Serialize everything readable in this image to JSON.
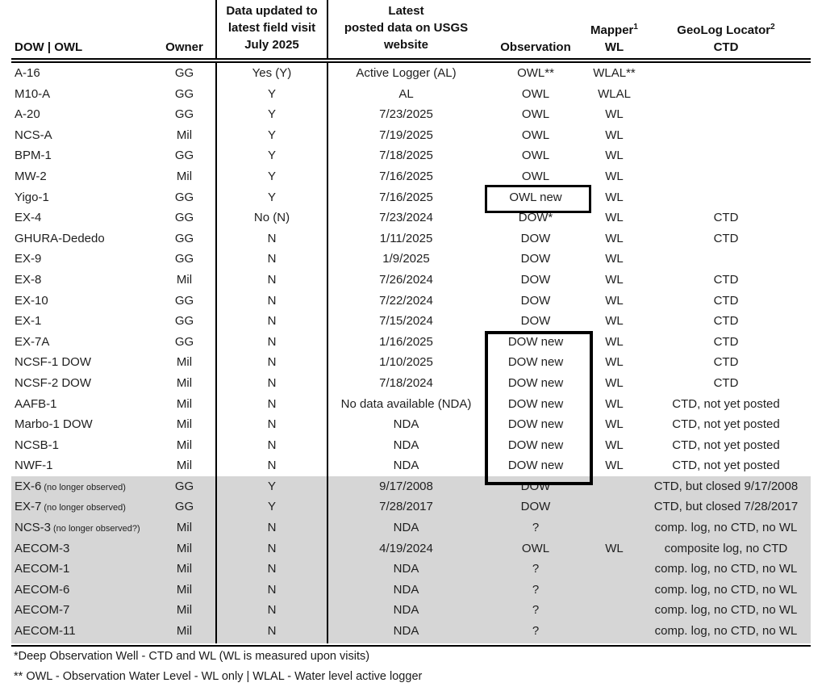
{
  "table": {
    "columns": [
      {
        "label": "DOW | OWL"
      },
      {
        "label": "Owner"
      },
      {
        "line1": "Data updated to",
        "line2": "latest field visit",
        "line3": "July 2025"
      },
      {
        "line1": "Latest",
        "line2": "posted data on USGS",
        "line3": "website"
      },
      {
        "label": "Observation"
      },
      {
        "label": "Mapper",
        "sup": "1",
        "sub_label": "WL"
      },
      {
        "label": "GeoLog Locator",
        "sup": "2",
        "sub_label": "CTD"
      }
    ],
    "rows": [
      {
        "name": "A-16",
        "note": "",
        "owner": "GG",
        "updated": "Yes (Y)",
        "posted": "Active Logger (AL)",
        "obs": "OWL**",
        "wl": "WLAL**",
        "ctd": ""
      },
      {
        "name": "M10-A",
        "note": "",
        "owner": "GG",
        "updated": "Y",
        "posted": "AL",
        "obs": "OWL",
        "wl": "WLAL",
        "ctd": ""
      },
      {
        "name": "A-20",
        "note": "",
        "owner": "GG",
        "updated": "Y",
        "posted": "7/23/2025",
        "obs": "OWL",
        "wl": "WL",
        "ctd": ""
      },
      {
        "name": "NCS-A",
        "note": "",
        "owner": "Mil",
        "updated": "Y",
        "posted": "7/19/2025",
        "obs": "OWL",
        "wl": "WL",
        "ctd": ""
      },
      {
        "name": "BPM-1",
        "note": "",
        "owner": "GG",
        "updated": "Y",
        "posted": "7/18/2025",
        "obs": "OWL",
        "wl": "WL",
        "ctd": ""
      },
      {
        "name": "MW-2",
        "note": "",
        "owner": "Mil",
        "updated": "Y",
        "posted": "7/16/2025",
        "obs": "OWL",
        "wl": "WL",
        "ctd": ""
      },
      {
        "name": "Yigo-1",
        "note": "",
        "owner": "GG",
        "updated": "Y",
        "posted": "7/16/2025",
        "obs": "OWL new",
        "wl": "WL",
        "ctd": ""
      },
      {
        "name": "EX-4",
        "note": "",
        "owner": "GG",
        "updated": "No (N)",
        "posted": "7/23/2024",
        "obs": "DOW*",
        "wl": "WL",
        "ctd": "CTD"
      },
      {
        "name": "GHURA-Dededo",
        "note": "",
        "owner": "GG",
        "updated": "N",
        "posted": "1/11/2025",
        "obs": "DOW",
        "wl": "WL",
        "ctd": "CTD"
      },
      {
        "name": "EX-9",
        "note": "",
        "owner": "GG",
        "updated": "N",
        "posted": "1/9/2025",
        "obs": "DOW",
        "wl": "WL",
        "ctd": ""
      },
      {
        "name": "EX-8",
        "note": "",
        "owner": "Mil",
        "updated": "N",
        "posted": "7/26/2024",
        "obs": "DOW",
        "wl": "WL",
        "ctd": "CTD"
      },
      {
        "name": "EX-10",
        "note": "",
        "owner": "GG",
        "updated": "N",
        "posted": "7/22/2024",
        "obs": "DOW",
        "wl": "WL",
        "ctd": "CTD"
      },
      {
        "name": "EX-1",
        "note": "",
        "owner": "GG",
        "updated": "N",
        "posted": "7/15/2024",
        "obs": "DOW",
        "wl": "WL",
        "ctd": "CTD"
      },
      {
        "name": "EX-7A",
        "note": "",
        "owner": "GG",
        "updated": "N",
        "posted": "1/16/2025",
        "obs": "DOW new",
        "wl": "WL",
        "ctd": "CTD"
      },
      {
        "name": "NCSF-1 DOW",
        "note": "",
        "owner": "Mil",
        "updated": "N",
        "posted": "1/10/2025",
        "obs": "DOW new",
        "wl": "WL",
        "ctd": "CTD"
      },
      {
        "name": "NCSF-2 DOW",
        "note": "",
        "owner": "Mil",
        "updated": "N",
        "posted": "7/18/2024",
        "obs": "DOW new",
        "wl": "WL",
        "ctd": "CTD"
      },
      {
        "name": "AAFB-1",
        "note": "",
        "owner": "Mil",
        "updated": "N",
        "posted": "No data available (NDA)",
        "obs": "DOW new",
        "wl": "WL",
        "ctd": "CTD, not yet posted"
      },
      {
        "name": "Marbo-1 DOW",
        "note": "",
        "owner": "Mil",
        "updated": "N",
        "posted": "NDA",
        "obs": "DOW new",
        "wl": "WL",
        "ctd": "CTD, not yet posted"
      },
      {
        "name": "NCSB-1",
        "note": "",
        "owner": "Mil",
        "updated": "N",
        "posted": "NDA",
        "obs": "DOW new",
        "wl": "WL",
        "ctd": "CTD, not yet posted"
      },
      {
        "name": "NWF-1",
        "note": "",
        "owner": "Mil",
        "updated": "N",
        "posted": "NDA",
        "obs": "DOW new",
        "wl": "WL",
        "ctd": "CTD, not yet posted"
      },
      {
        "name": "EX-6",
        "note": "(no longer observed)",
        "owner": "GG",
        "updated": "Y",
        "posted": "9/17/2008",
        "obs": "DOW",
        "wl": "",
        "ctd": "CTD, but closed 9/17/2008",
        "inactive": true
      },
      {
        "name": "EX-7",
        "note": "(no longer observed)",
        "owner": "GG",
        "updated": "Y",
        "posted": "7/28/2017",
        "obs": "DOW",
        "wl": "",
        "ctd": "CTD, but closed 7/28/2017",
        "inactive": true
      },
      {
        "name": "NCS-3",
        "note": "(no longer observed?)",
        "owner": "Mil",
        "updated": "N",
        "posted": "NDA",
        "obs": "?",
        "wl": "",
        "ctd": "comp. log, no CTD, no WL",
        "inactive": true
      },
      {
        "name": "AECOM-3",
        "note": "",
        "owner": "Mil",
        "updated": "N",
        "posted": "4/19/2024",
        "obs": "OWL",
        "wl": "WL",
        "ctd": "composite log, no CTD",
        "inactive": true
      },
      {
        "name": "AECOM-1",
        "note": "",
        "owner": "Mil",
        "updated": "N",
        "posted": "NDA",
        "obs": "?",
        "wl": "",
        "ctd": "comp. log, no CTD, no WL",
        "inactive": true
      },
      {
        "name": "AECOM-6",
        "note": "",
        "owner": "Mil",
        "updated": "N",
        "posted": "NDA",
        "obs": "?",
        "wl": "",
        "ctd": "comp. log, no CTD, no WL",
        "inactive": true
      },
      {
        "name": "AECOM-7",
        "note": "",
        "owner": "Mil",
        "updated": "N",
        "posted": "NDA",
        "obs": "?",
        "wl": "",
        "ctd": "comp. log, no CTD, no WL",
        "inactive": true
      },
      {
        "name": "AECOM-11",
        "note": "",
        "owner": "Mil",
        "updated": "N",
        "posted": "NDA",
        "obs": "?",
        "wl": "",
        "ctd": "comp. log, no CTD, no WL",
        "inactive": true
      }
    ]
  },
  "footnotes": [
    "*Deep Observation Well - CTD and WL (WL is measured upon visits)",
    "** OWL - Observation Water Level - WL only | WLAL - Water level active logger"
  ],
  "colors": {
    "inactive_row_bg": "#d6d6d6",
    "border": "#000000",
    "text": "#1f1f1f"
  }
}
